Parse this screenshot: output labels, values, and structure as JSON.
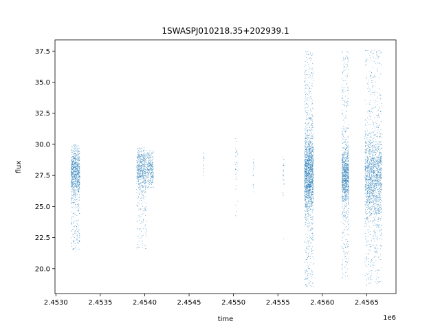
{
  "chart_data": {
    "type": "scatter",
    "title": "1SWASPJ010218.35+202939.1",
    "xlabel": "time",
    "ylabel": "flux",
    "x_offset_label": "1e6",
    "xlim": [
      2.45299,
      2.45683
    ],
    "ylim": [
      18.0,
      38.4
    ],
    "x_tick_values": [
      2.453,
      2.4535,
      2.454,
      2.4545,
      2.455,
      2.4555,
      2.456,
      2.4565
    ],
    "x_tick_labels": [
      "2.4530",
      "2.4535",
      "2.4540",
      "2.4545",
      "2.4550",
      "2.4555",
      "2.4560",
      "2.4565"
    ],
    "y_tick_values": [
      20.0,
      22.5,
      25.0,
      27.5,
      30.0,
      32.5,
      35.0,
      37.5
    ],
    "y_tick_labels": [
      "20.0",
      "22.5",
      "25.0",
      "27.5",
      "30.0",
      "32.5",
      "35.0",
      "37.5"
    ],
    "grid": false,
    "color": "#1f77b4",
    "series": [
      {
        "clusters": [
          {
            "x_range": [
              2.45317,
              2.45327
            ],
            "y_center": 27.8,
            "y_spread": 1.0,
            "y_min": 21.5,
            "y_max": 30.0,
            "density": 1.0
          },
          {
            "x_range": [
              2.45391,
              2.45402
            ],
            "y_center": 28.0,
            "y_spread": 0.9,
            "y_min": 21.5,
            "y_max": 29.8,
            "density": 0.7
          },
          {
            "x_range": [
              2.45403,
              2.4541
            ],
            "y_center": 28.0,
            "y_spread": 0.7,
            "y_min": 26.5,
            "y_max": 29.5,
            "density": 0.3
          },
          {
            "x_range": [
              2.45466,
              2.45467
            ],
            "y_center": 28.3,
            "y_spread": 0.6,
            "y_min": 27.2,
            "y_max": 29.5,
            "density": 0.02
          },
          {
            "x_range": [
              2.45502,
              2.45505
            ],
            "y_center": 28.8,
            "y_spread": 1.5,
            "y_min": 23.0,
            "y_max": 31.2,
            "density": 0.04
          },
          {
            "x_range": [
              2.45522,
              2.45523
            ],
            "y_center": 28.0,
            "y_spread": 0.6,
            "y_min": 26.0,
            "y_max": 29.0,
            "density": 0.02
          },
          {
            "x_range": [
              2.45555,
              2.45557
            ],
            "y_center": 27.5,
            "y_spread": 1.0,
            "y_min": 22.3,
            "y_max": 29.0,
            "density": 0.03
          },
          {
            "x_range": [
              2.4558,
              2.4559
            ],
            "y_center": 27.5,
            "y_spread": 1.6,
            "y_min": 18.5,
            "y_max": 37.5,
            "density": 2.0
          },
          {
            "x_range": [
              2.45622,
              2.4563
            ],
            "y_center": 27.5,
            "y_spread": 1.2,
            "y_min": 19.2,
            "y_max": 37.5,
            "density": 1.2
          },
          {
            "x_range": [
              2.45648,
              2.45667
            ],
            "y_center": 27.4,
            "y_spread": 1.8,
            "y_min": 18.6,
            "y_max": 37.6,
            "density": 2.0
          }
        ]
      }
    ]
  }
}
